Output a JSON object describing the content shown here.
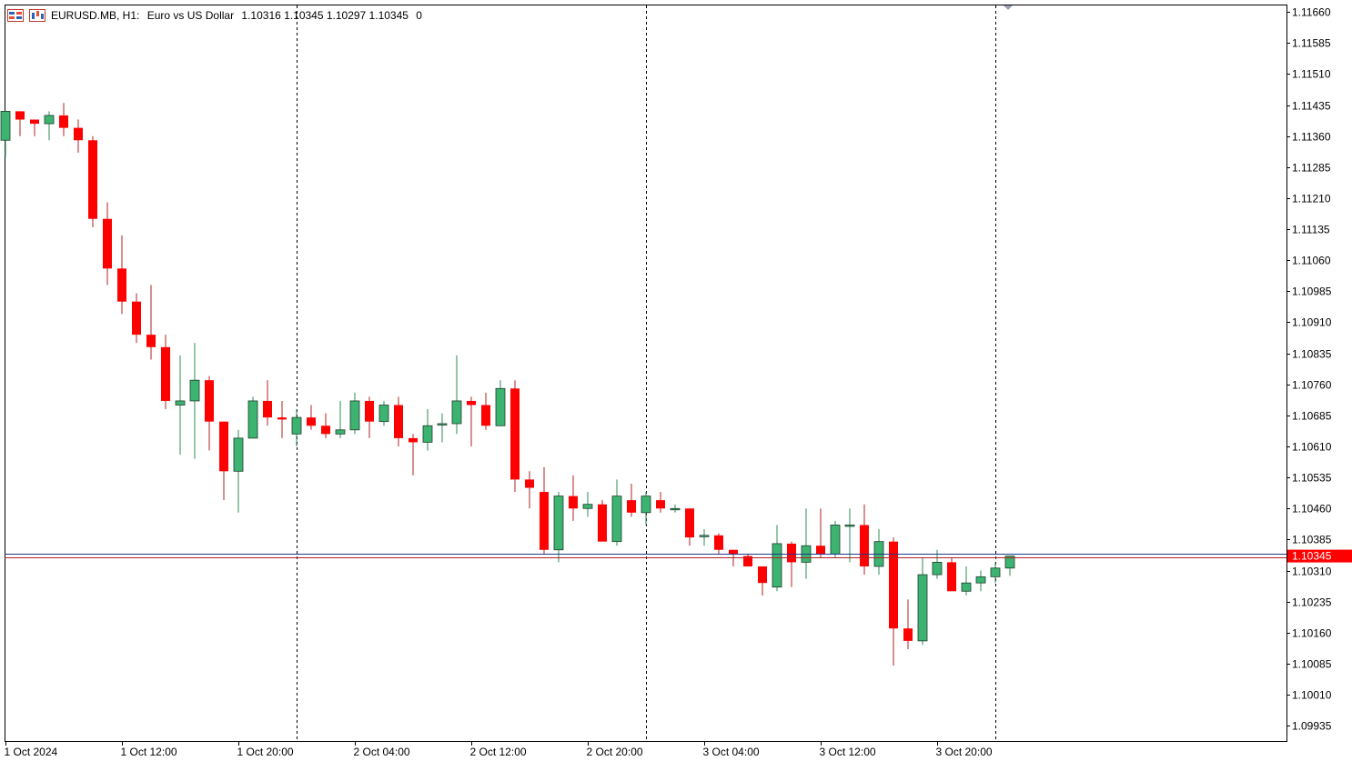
{
  "header": {
    "symbol": "EURUSD.MB, H1:",
    "description": "Euro vs US Dollar",
    "ohlc": "1.10316 1.10345 1.10297 1.10345",
    "extra": "0",
    "icons": [
      "chart-window-icon",
      "chart-type-icon"
    ]
  },
  "colors": {
    "bull": "#3cb371",
    "bear": "#ff0000",
    "wick_bull": "#2e8b57",
    "wick_bear": "#b22222",
    "grid": "#000000",
    "price_label_bg": "#ff0000",
    "price_label_text": "#ffffff",
    "bid_line": "#b22222",
    "ask_line": "#1e3a8a"
  },
  "chart_data": {
    "type": "candlestick",
    "timeframe": "H1",
    "y_ticks": [
      "1.11660",
      "1.11585",
      "1.11510",
      "1.11435",
      "1.11360",
      "1.11285",
      "1.11210",
      "1.11135",
      "1.11060",
      "1.10985",
      "1.10910",
      "1.10835",
      "1.10760",
      "1.10685",
      "1.10610",
      "1.10535",
      "1.10460",
      "1.10385",
      "1.10310",
      "1.10235",
      "1.10160",
      "1.10085",
      "1.10010",
      "1.09935"
    ],
    "ylim": [
      1.09898,
      1.11678
    ],
    "x_labels": [
      {
        "label": "1 Oct 2024",
        "index": 0
      },
      {
        "label": "1 Oct 12:00",
        "index": 8
      },
      {
        "label": "1 Oct 20:00",
        "index": 16
      },
      {
        "label": "2 Oct 04:00",
        "index": 24
      },
      {
        "label": "2 Oct 12:00",
        "index": 32
      },
      {
        "label": "2 Oct 20:00",
        "index": 40
      },
      {
        "label": "3 Oct 04:00",
        "index": 48
      },
      {
        "label": "3 Oct 12:00",
        "index": 56
      },
      {
        "label": "3 Oct 20:00",
        "index": 64
      }
    ],
    "separators": [
      20,
      44,
      68
    ],
    "current_price": "1.10345",
    "current_price_value": 1.10345,
    "ask_price_value": 1.1035,
    "candles": [
      [
        1.1135,
        1.1142,
        1.1131,
        1.1142
      ],
      [
        1.1142,
        1.1142,
        1.1136,
        1.114
      ],
      [
        1.114,
        1.114,
        1.1136,
        1.1139
      ],
      [
        1.1139,
        1.1142,
        1.1135,
        1.1141
      ],
      [
        1.1141,
        1.1144,
        1.1136,
        1.1138
      ],
      [
        1.1138,
        1.114,
        1.1132,
        1.1135
      ],
      [
        1.1135,
        1.1136,
        1.1114,
        1.1116
      ],
      [
        1.1116,
        1.112,
        1.11,
        1.1104
      ],
      [
        1.1104,
        1.1112,
        1.1093,
        1.1096
      ],
      [
        1.1096,
        1.1098,
        1.1086,
        1.1088
      ],
      [
        1.1088,
        1.11,
        1.1082,
        1.1085
      ],
      [
        1.1085,
        1.1088,
        1.107,
        1.1072
      ],
      [
        1.1071,
        1.1083,
        1.1059,
        1.1072
      ],
      [
        1.1072,
        1.1086,
        1.1058,
        1.1077
      ],
      [
        1.1077,
        1.1078,
        1.106,
        1.1067
      ],
      [
        1.1067,
        1.1067,
        1.1048,
        1.1055
      ],
      [
        1.1055,
        1.1065,
        1.1045,
        1.1063
      ],
      [
        1.1063,
        1.1073,
        1.1063,
        1.1072
      ],
      [
        1.1072,
        1.1077,
        1.1066,
        1.1068
      ],
      [
        1.1068,
        1.1072,
        1.1063,
        1.10675
      ],
      [
        1.1064,
        1.107,
        1.1061,
        1.1068
      ],
      [
        1.1068,
        1.1071,
        1.1065,
        1.1066
      ],
      [
        1.1066,
        1.1069,
        1.1063,
        1.1064
      ],
      [
        1.1064,
        1.1072,
        1.1063,
        1.1065
      ],
      [
        1.1065,
        1.1074,
        1.1064,
        1.1072
      ],
      [
        1.1072,
        1.1073,
        1.1063,
        1.1067
      ],
      [
        1.1067,
        1.1072,
        1.1066,
        1.1071
      ],
      [
        1.1071,
        1.1073,
        1.1061,
        1.1063
      ],
      [
        1.1063,
        1.1064,
        1.1054,
        1.1062
      ],
      [
        1.1062,
        1.107,
        1.106,
        1.1066
      ],
      [
        1.10665,
        1.1069,
        1.1062,
        1.10665
      ],
      [
        1.10665,
        1.1083,
        1.1064,
        1.1072
      ],
      [
        1.1072,
        1.1073,
        1.1061,
        1.1071
      ],
      [
        1.1071,
        1.1074,
        1.1065,
        1.1066
      ],
      [
        1.1066,
        1.1077,
        1.1066,
        1.1075
      ],
      [
        1.1075,
        1.1077,
        1.105,
        1.1053
      ],
      [
        1.1053,
        1.1055,
        1.1046,
        1.1051
      ],
      [
        1.105,
        1.1056,
        1.1035,
        1.1036
      ],
      [
        1.1036,
        1.105,
        1.1033,
        1.1049
      ],
      [
        1.1049,
        1.1054,
        1.1043,
        1.1046
      ],
      [
        1.1046,
        1.105,
        1.1044,
        1.1047
      ],
      [
        1.1047,
        1.1048,
        1.1038,
        1.1038
      ],
      [
        1.1038,
        1.1053,
        1.1037,
        1.1049
      ],
      [
        1.1048,
        1.1052,
        1.1044,
        1.1045
      ],
      [
        1.1045,
        1.105,
        1.1042,
        1.1049
      ],
      [
        1.1048,
        1.105,
        1.1045,
        1.1046
      ],
      [
        1.1046,
        1.1047,
        1.1045,
        1.1046
      ],
      [
        1.1046,
        1.1046,
        1.1037,
        1.1039
      ],
      [
        1.10395,
        1.1041,
        1.1037,
        1.10395
      ],
      [
        1.10395,
        1.104,
        1.1035,
        1.1036
      ],
      [
        1.1036,
        1.1036,
        1.1032,
        1.1035
      ],
      [
        1.10345,
        1.1035,
        1.1032,
        1.1032
      ],
      [
        1.1032,
        1.1032,
        1.1025,
        1.1028
      ],
      [
        1.1027,
        1.1042,
        1.1026,
        1.10375
      ],
      [
        1.10375,
        1.1038,
        1.1027,
        1.1033
      ],
      [
        1.1033,
        1.1046,
        1.1029,
        1.1037
      ],
      [
        1.1037,
        1.1046,
        1.1034,
        1.1035
      ],
      [
        1.1035,
        1.1043,
        1.1034,
        1.1042
      ],
      [
        1.1042,
        1.1046,
        1.1033,
        1.1042
      ],
      [
        1.1042,
        1.1047,
        1.103,
        1.1032
      ],
      [
        1.1032,
        1.1041,
        1.103,
        1.1038
      ],
      [
        1.1038,
        1.1039,
        1.1008,
        1.1017
      ],
      [
        1.1017,
        1.1024,
        1.1012,
        1.1014
      ],
      [
        1.1014,
        1.1034,
        1.1013,
        1.103
      ],
      [
        1.103,
        1.1036,
        1.1029,
        1.1033
      ],
      [
        1.1033,
        1.1034,
        1.1026,
        1.1026
      ],
      [
        1.1026,
        1.1032,
        1.1025,
        1.1028
      ],
      [
        1.1028,
        1.1031,
        1.1026,
        1.10295
      ],
      [
        1.10295,
        1.1033,
        1.1028,
        1.10316
      ],
      [
        1.10316,
        1.10345,
        1.10297,
        1.10345
      ]
    ]
  }
}
